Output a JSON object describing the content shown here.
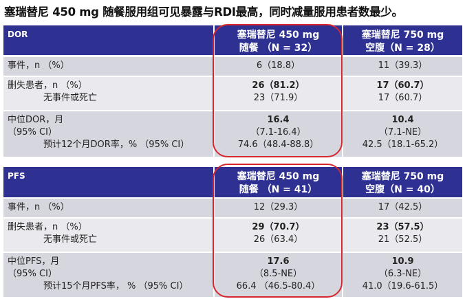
{
  "title": "塞瑞替尼 450 mg 随餐服用组可见暴露与RDI最高，同时减量服用患者数最少。",
  "colors": {
    "header": "#2e3192",
    "highlight": "#d8262f"
  },
  "tables": [
    {
      "label": "DOR",
      "col2": [
        "塞瑞替尼 450 mg",
        "随餐 （N = 32）"
      ],
      "col3": [
        "塞瑞替尼 750 mg",
        "空腹（N = 28）"
      ],
      "events": {
        "label": "事件，n （%）",
        "c2": "6（18.8）",
        "c3": "11（39.3）"
      },
      "censored": {
        "label": "删失患者，n （%）",
        "sub": "无事件或死亡",
        "c2": "26（81.2）",
        "c2sub": "23（71.9）",
        "c3": "17（60.7）",
        "c3sub": "17（60.7）"
      },
      "median": {
        "label": "中位DOR，月",
        "ci": "（95% CI）",
        "rate": "预计12个月DOR率，% （95% CI）",
        "c2": "16.4",
        "c2ci": "（7.1-16.4）",
        "c2rate": "74.6（48.4-88.8）",
        "c3": "10.4",
        "c3ci": "（7.1-NE）",
        "c3rate": "42.5（18.1-65.2）"
      }
    },
    {
      "label": "PFS",
      "col2": [
        "塞瑞替尼 450 mg",
        "随餐 （N = 41）"
      ],
      "col3": [
        "塞瑞替尼 750 mg",
        "空腹（N = 40）"
      ],
      "events": {
        "label": "事件，n （%）",
        "c2": "12（29.3）",
        "c3": "17（42.5）"
      },
      "censored": {
        "label": "删失患者，n （%）",
        "sub": "无事件或死亡",
        "c2": "29（70.7）",
        "c2sub": "26（63.4）",
        "c3": "23（57.5）",
        "c3sub": "21（52.5）"
      },
      "median": {
        "label": "中位PFS，月",
        "ci": "（95% CI）",
        "rate": "预计15个月PFS率， % （95% CI）",
        "c2": "17.6",
        "c2ci": "（8.5-NE）",
        "c2rate": "66.4 （46.5-80.4）",
        "c3": "10.9",
        "c3ci": "（6.3-NE）",
        "c3rate": "41.0（19.6-61.5）"
      }
    }
  ]
}
